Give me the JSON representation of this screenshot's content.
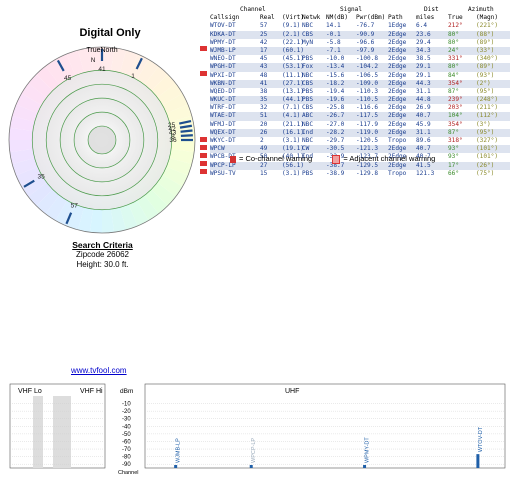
{
  "radar": {
    "title": "Digital Only",
    "north_label": "TrueNorth",
    "compass_n": "N",
    "ring_count": 6,
    "station_ticks": [
      {
        "label": "41",
        "azimuth": 0
      },
      {
        "label": "45",
        "azimuth": 331
      },
      {
        "label": "1",
        "azimuth": 26
      },
      {
        "label": "57",
        "azimuth": 203
      },
      {
        "label": "35",
        "azimuth": 239
      },
      {
        "label": "25",
        "azimuth": 78
      },
      {
        "label": "42",
        "azimuth": 81
      },
      {
        "label": "43",
        "azimuth": 84
      },
      {
        "label": "8",
        "azimuth": 87
      },
      {
        "label": "36",
        "azimuth": 90
      }
    ]
  },
  "search": {
    "heading": "Search Criteria",
    "zipcode": "Zipcode 26062",
    "height": "Height: 30.0 ft."
  },
  "url": "www.tvfool.com",
  "table": {
    "group_headers": {
      "channel": "Channel",
      "signal": "Signal",
      "dist": "Dist",
      "azimuth": "Azimuth"
    },
    "columns": [
      "Callsign",
      "Real",
      "(Virt)",
      "Netwk",
      "NM(dB)",
      "Pwr(dBm)",
      "Path",
      "miles",
      "True",
      "(Magn)"
    ],
    "rows": [
      [
        "WTOV-DT",
        "57",
        "(9.1)",
        "NBC",
        "14.1",
        "-76.7",
        "1Edge",
        "6.4",
        "212°",
        "(221°)"
      ],
      [
        "KDKA-DT",
        "25",
        "(2.1)",
        "CBS",
        "-0.1",
        "-90.9",
        "2Edge",
        "23.6",
        "80°",
        "(88°)"
      ],
      [
        "WPMY-DT",
        "42",
        "(22.1)",
        "MyN",
        "-5.8",
        "-96.6",
        "2Edge",
        "29.4",
        "80°",
        "(89°)"
      ],
      [
        "WJMB-LP",
        "17",
        "(60.1)",
        "",
        "-7.1",
        "-97.9",
        "2Edge",
        "34.3",
        "24°",
        "(33°)"
      ],
      [
        "WNEO-DT",
        "45",
        "(45.1)",
        "PBS",
        "-10.0",
        "-100.8",
        "2Edge",
        "38.5",
        "331°",
        "(340°)"
      ],
      [
        "WPGH-DT",
        "43",
        "(53.1)",
        "Fox",
        "-13.4",
        "-104.2",
        "2Edge",
        "29.1",
        "80°",
        "(89°)"
      ],
      [
        "WPXI-DT",
        "48",
        "(11.1)",
        "NBC",
        "-15.6",
        "-106.5",
        "2Edge",
        "29.1",
        "84°",
        "(93°)"
      ],
      [
        "WKBN-DT",
        "41",
        "(27.1)",
        "CBS",
        "-18.2",
        "-109.0",
        "2Edge",
        "44.3",
        "354°",
        "(2°)"
      ],
      [
        "WQED-DT",
        "38",
        "(13.1)",
        "PBS",
        "-19.4",
        "-110.3",
        "2Edge",
        "31.1",
        "87°",
        "(95°)"
      ],
      [
        "WKUC-DT",
        "35",
        "(44.1)",
        "PBS",
        "-19.6",
        "-110.5",
        "2Edge",
        "44.8",
        "239°",
        "(248°)"
      ],
      [
        "WTRF-DT",
        "32",
        "(7.1)",
        "CBS",
        "-25.8",
        "-116.6",
        "2Edge",
        "26.9",
        "203°",
        "(211°)"
      ],
      [
        "WTAE-DT",
        "51",
        "(4.1)",
        "ABC",
        "-26.7",
        "-117.5",
        "2Edge",
        "40.7",
        "104°",
        "(112°)"
      ],
      [
        "WFMJ-DT",
        "20",
        "(21.1)",
        "NBC",
        "-27.0",
        "-117.9",
        "2Edge",
        "45.9",
        "354°",
        "(3°)"
      ],
      [
        "WQEX-DT",
        "26",
        "(16.1)",
        "Ind",
        "-28.2",
        "-119.0",
        "2Edge",
        "31.1",
        "87°",
        "(95°)"
      ],
      [
        "WKYC-DT",
        "2",
        "(3.1)",
        "NBC",
        "-29.7",
        "-120.5",
        "Tropo",
        "89.6",
        "318°",
        "(327°)"
      ],
      [
        "WPCW",
        "49",
        "(19.1)",
        "CW",
        "-30.5",
        "-121.3",
        "2Edge",
        "40.7",
        "93°",
        "(101°)"
      ],
      [
        "WPCB-DT",
        "50",
        "(40.1)",
        "Ind",
        "-32.9",
        "-123.7",
        "2Edge",
        "40.7",
        "93°",
        "(101°)"
      ],
      [
        "WPCP-LP",
        "27",
        "(56.1)",
        "",
        "-38.7",
        "-129.5",
        "2Edge",
        "41.5",
        "17°",
        "(26°)"
      ],
      [
        "WPSU-TV",
        "15",
        "(3.1)",
        "PBS",
        "-38.9",
        "-129.8",
        "Tropo",
        "121.3",
        "66°",
        "(75°)"
      ]
    ]
  },
  "legend": {
    "cochannel": "= Co-channel warning",
    "adjacent": "= Adjacent channel warning"
  },
  "chart_data": {
    "type": "bar",
    "title": "",
    "bands": {
      "vhf_lo": "VHF Lo",
      "vhf_hi": "VHF Hi",
      "uhf": "UHF"
    },
    "ylabel": "dBm",
    "xlabel": "Channel",
    "y_ticks": [
      "-10",
      "-20",
      "-30",
      "-40",
      "-50",
      "-60",
      "-70",
      "-80",
      "-90"
    ],
    "ylim": [
      -95,
      0
    ],
    "x_uhf_range": [
      14,
      59
    ],
    "series": [
      {
        "callsign": "WJMB-LP",
        "channel": 17,
        "value": -97.9
      },
      {
        "callsign": "WTOV-DT",
        "channel": 57,
        "value": -76.7
      },
      {
        "callsign": "WPMY-DT",
        "channel": 42,
        "value": -96.6
      },
      {
        "callsign": "WPCP-LP",
        "channel": 27,
        "value": -129.5
      }
    ]
  },
  "colors": {
    "bar": "#1f5fa8",
    "tick": "#1f4f8f",
    "warn_red": "#d33333",
    "adj_pink": "#f0a0a0"
  }
}
